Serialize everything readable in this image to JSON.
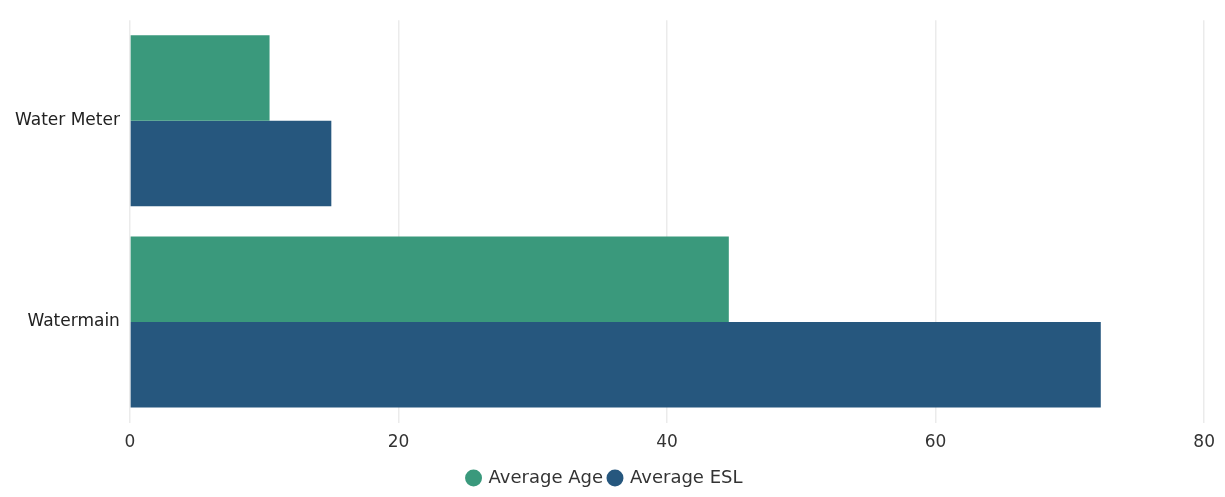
{
  "chart_data": {
    "type": "bar",
    "orientation": "horizontal",
    "categories": [
      "Water Meter",
      "Watermain"
    ],
    "series": [
      {
        "name": "Average Age",
        "color": "#3a997c",
        "values": [
          10.4,
          44.6
        ]
      },
      {
        "name": "Average ESL",
        "color": "#26577e",
        "values": [
          15,
          72.3
        ]
      }
    ],
    "xlim": [
      0,
      80
    ],
    "xticks": [
      0,
      20,
      40,
      60,
      80
    ],
    "grid": "x",
    "legend": "bottom"
  }
}
